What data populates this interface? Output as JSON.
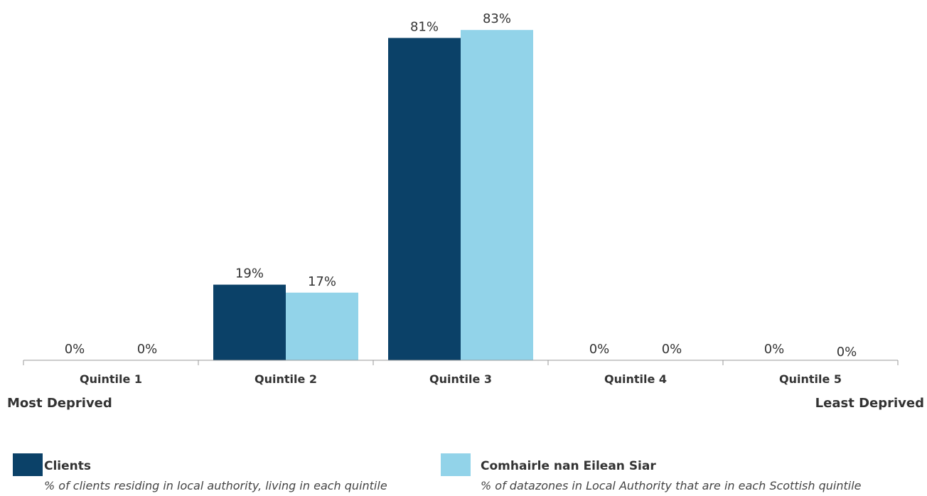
{
  "chart_data": {
    "type": "bar",
    "categories": [
      "Quintile 1",
      "Quintile 2",
      "Quintile 3",
      "Quintile 4",
      "Quintile 5"
    ],
    "series": [
      {
        "name": "Clients",
        "values": [
          0,
          19,
          81,
          0,
          0
        ],
        "labels": [
          "0%",
          "19%",
          "81%",
          "0%",
          "0%"
        ],
        "color": "#0b4168"
      },
      {
        "name": "Comhairle nan Eilean Siar",
        "values": [
          0,
          17,
          83,
          0,
          0
        ],
        "labels": [
          "0%",
          "17%",
          "83%",
          "0%",
          "0%"
        ],
        "color": "#92d3e9"
      }
    ],
    "ylim": [
      0,
      100
    ],
    "grid": false,
    "legend_position": "bottom",
    "left_end_label": "Most Deprived",
    "right_end_label": "Least Deprived"
  },
  "legend": {
    "clients": {
      "name": "Clients",
      "description": "% of clients residing in local authority, living in each quintile",
      "color": "#0b4168"
    },
    "comparison": {
      "name": "Comhairle nan Eilean Siar",
      "description": "% of datazones in Local Authority that are in each Scottish quintile",
      "color": "#92d3e9"
    }
  }
}
